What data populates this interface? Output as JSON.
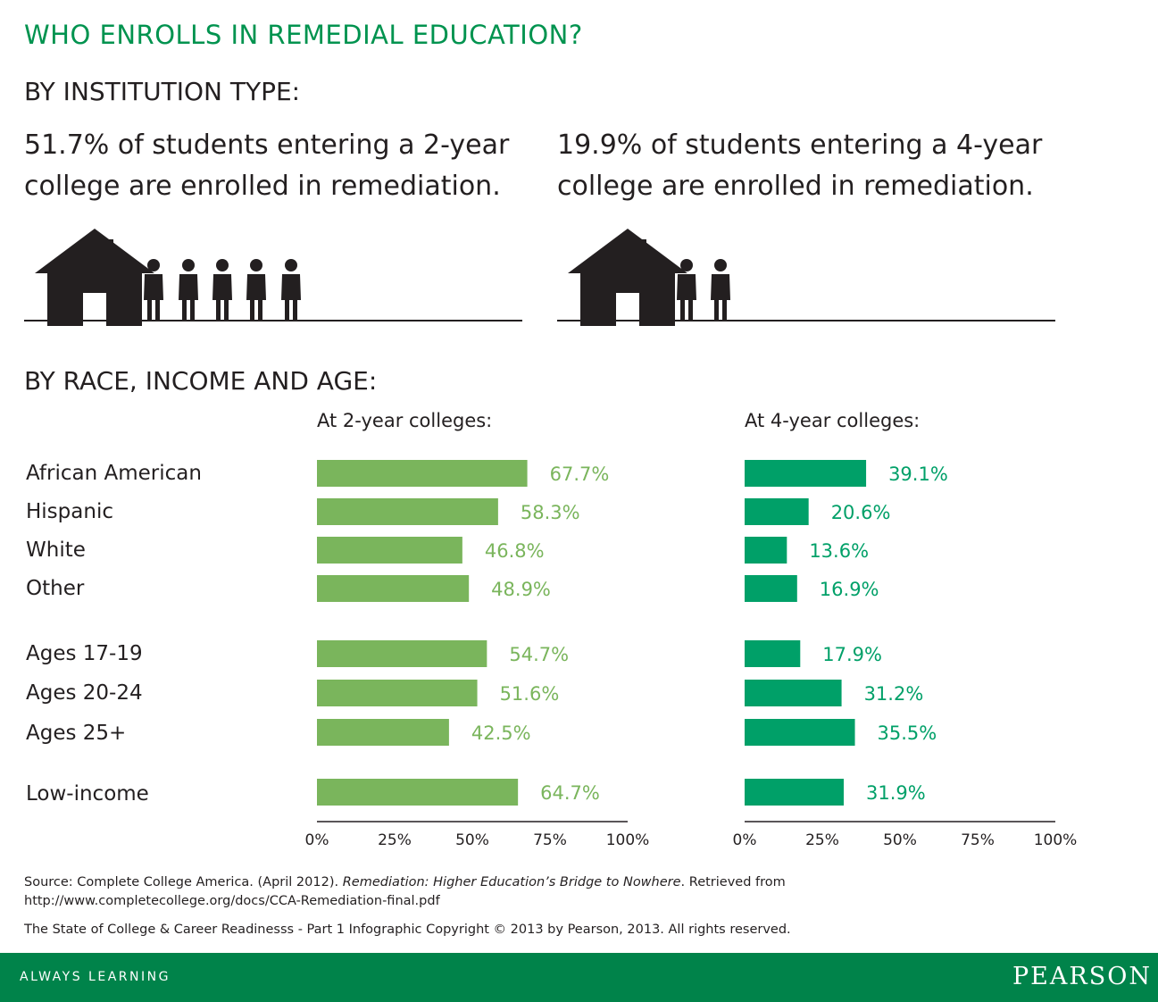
{
  "header": {
    "title": "WHO ENROLLS IN REMEDIAL EDUCATION?",
    "section_institution": "BY INSTITUTION TYPE:",
    "section_demographics": "BY RACE, INCOME AND AGE:"
  },
  "institution": {
    "two_year": {
      "line1": "51.7% of students entering a 2-year",
      "line2": "college are enrolled in remediation.",
      "people_icons": 5
    },
    "four_year": {
      "line1": "19.9% of students entering a 4-year",
      "line2": "college are enrolled in remediation.",
      "people_icons": 2
    }
  },
  "categories": [
    "African American",
    "Hispanic",
    "White",
    "Other",
    "Ages 17-19",
    "Ages 20-24",
    "Ages 25+",
    "Low-income"
  ],
  "chart_data": [
    {
      "type": "bar",
      "orientation": "horizontal",
      "title": "At 2-year colleges:",
      "categories": [
        "African American",
        "Hispanic",
        "White",
        "Other",
        "Ages 17-19",
        "Ages 20-24",
        "Ages 25+",
        "Low-income"
      ],
      "values": [
        67.7,
        58.3,
        46.8,
        48.9,
        54.7,
        51.6,
        42.5,
        64.7
      ],
      "data_labels": [
        "67.7%",
        "58.3%",
        "46.8%",
        "48.9%",
        "54.7%",
        "51.6%",
        "42.5%",
        "64.7%"
      ],
      "xlim": [
        0,
        100
      ],
      "x_ticks": [
        "0%",
        "25%",
        "50%",
        "75%",
        "100%"
      ],
      "bar_color": "#7ab55c",
      "label_color": "#7ab55c",
      "grid": false
    },
    {
      "type": "bar",
      "orientation": "horizontal",
      "title": "At 4-year colleges:",
      "categories": [
        "African American",
        "Hispanic",
        "White",
        "Other",
        "Ages 17-19",
        "Ages 20-24",
        "Ages 25+",
        "Low-income"
      ],
      "values": [
        39.1,
        20.6,
        13.6,
        16.9,
        17.9,
        31.2,
        35.5,
        31.9
      ],
      "data_labels": [
        "39.1%",
        "20.6%",
        "13.6%",
        "16.9%",
        "17.9%",
        "31.2%",
        "35.5%",
        "31.9%"
      ],
      "xlim": [
        0,
        100
      ],
      "x_ticks": [
        "0%",
        "25%",
        "50%",
        "75%",
        "100%"
      ],
      "bar_color": "#00a068",
      "label_color": "#00a068",
      "grid": false
    }
  ],
  "source": {
    "prefix": "Source:",
    "citation": "Complete College America. (April 2012).",
    "title": "Remediation: Higher Education’s Bridge to Nowhere",
    "suffix": ". Retrieved from",
    "url": "http://www.completecollege.org/docs/CCA-Remediation-final.pdf",
    "copyright": "The State of College & Career Readinesss - Part 1 Infographic Copyright © 2013 by Pearson, 2013. All rights reserved."
  },
  "footer": {
    "tagline": "ALWAYS LEARNING",
    "brand": "PEARSON"
  },
  "colors": {
    "title_green": "#00934f",
    "footer_green": "#00834a",
    "icon_black": "#231f20"
  }
}
